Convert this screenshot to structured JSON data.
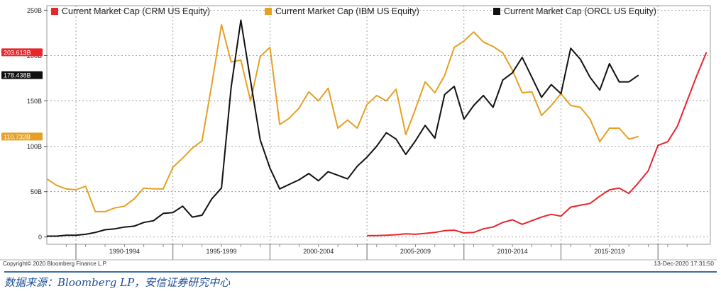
{
  "chart_data": {
    "type": "line",
    "legend": [
      "Current Market Cap (CRM US Equity)",
      "Current Market Cap (IBM US Equity)",
      "Current Market Cap (ORCL US Equity)"
    ],
    "legend_position": "top",
    "y_ticks": [
      "250B",
      "200B",
      "150B",
      "100B",
      "50B",
      "0"
    ],
    "y_tick_values": [
      250,
      200,
      150,
      100,
      50,
      0
    ],
    "ylim": [
      -8,
      255
    ],
    "xlim": [
      1988.0,
      2021.0
    ],
    "x_major_ticks": [
      1989.5,
      1994.5,
      1999.5,
      2004.5,
      2009.5,
      2014.5,
      2019.5
    ],
    "x_period_labels": [
      "1990-1994",
      "1995-1999",
      "2000-2004",
      "2005-2009",
      "2010-2014",
      "2015-2019"
    ],
    "x_period_centers": [
      1992.0,
      1997.0,
      2002.0,
      2007.0,
      2012.0,
      2017.0
    ],
    "grid": true,
    "last_value_tags": [
      {
        "series": 0,
        "text": "203.613B",
        "value": 203.613
      },
      {
        "series": 2,
        "text": "178.438B",
        "value": 178.438
      },
      {
        "series": 1,
        "text": "110.732B",
        "value": 110.732
      }
    ],
    "series": [
      {
        "name": "Current Market Cap (CRM US Equity)",
        "color": "#e8262c",
        "points": [
          [
            2004.5,
            1.5
          ],
          [
            2005.0,
            1.5
          ],
          [
            2005.5,
            2
          ],
          [
            2006.0,
            2.5
          ],
          [
            2006.5,
            3.5
          ],
          [
            2007.0,
            3
          ],
          [
            2007.5,
            4
          ],
          [
            2008.0,
            5
          ],
          [
            2008.5,
            7
          ],
          [
            2009.0,
            7.5
          ],
          [
            2009.5,
            4.5
          ],
          [
            2010.0,
            5
          ],
          [
            2010.5,
            9
          ],
          [
            2011.0,
            11
          ],
          [
            2011.5,
            16
          ],
          [
            2012.0,
            19
          ],
          [
            2012.5,
            14
          ],
          [
            2013.0,
            18
          ],
          [
            2013.5,
            22
          ],
          [
            2014.0,
            25
          ],
          [
            2014.5,
            23
          ],
          [
            2015.0,
            33
          ],
          [
            2015.5,
            35
          ],
          [
            2016.0,
            37
          ],
          [
            2016.5,
            45
          ],
          [
            2017.0,
            52
          ],
          [
            2017.5,
            54
          ],
          [
            2018.0,
            48
          ],
          [
            2018.5,
            60
          ],
          [
            2019.0,
            73
          ],
          [
            2019.5,
            101
          ],
          [
            2020.0,
            105
          ],
          [
            2020.5,
            122
          ],
          [
            2021.0,
            150
          ],
          [
            2021.5,
            178
          ],
          [
            2022.0,
            203.6
          ]
        ]
      },
      {
        "name": "Current Market Cap (IBM US Equity)",
        "color": "#e6a024",
        "points": [
          [
            1988.0,
            64
          ],
          [
            1988.5,
            57
          ],
          [
            1989.0,
            53
          ],
          [
            1989.5,
            52
          ],
          [
            1990.0,
            56
          ],
          [
            1990.5,
            28
          ],
          [
            1991.0,
            28
          ],
          [
            1991.5,
            32
          ],
          [
            1992.0,
            34
          ],
          [
            1992.5,
            42
          ],
          [
            1993.0,
            54
          ],
          [
            1993.5,
            53
          ],
          [
            1994.0,
            53
          ],
          [
            1994.5,
            77
          ],
          [
            1995.0,
            87
          ],
          [
            1995.5,
            98
          ],
          [
            1996.0,
            106
          ],
          [
            1996.5,
            168
          ],
          [
            1997.0,
            234
          ],
          [
            1997.5,
            193
          ],
          [
            1998.0,
            195
          ],
          [
            1998.5,
            150
          ],
          [
            1999.0,
            199
          ],
          [
            1999.5,
            209
          ],
          [
            2000.0,
            124
          ],
          [
            2000.5,
            131
          ],
          [
            2001.0,
            142
          ],
          [
            2001.5,
            160
          ],
          [
            2002.0,
            150
          ],
          [
            2002.5,
            164
          ],
          [
            2003.0,
            120
          ],
          [
            2003.5,
            129
          ],
          [
            2004.0,
            120
          ],
          [
            2004.5,
            146
          ],
          [
            2005.0,
            156
          ],
          [
            2005.5,
            150
          ],
          [
            2006.0,
            163
          ],
          [
            2006.5,
            113
          ],
          [
            2007.0,
            141
          ],
          [
            2007.5,
            171
          ],
          [
            2008.0,
            159
          ],
          [
            2008.5,
            178
          ],
          [
            2009.0,
            209
          ],
          [
            2009.5,
            216
          ],
          [
            2010.0,
            226
          ],
          [
            2010.5,
            215
          ],
          [
            2011.0,
            210
          ],
          [
            2011.5,
            203
          ],
          [
            2012.0,
            184
          ],
          [
            2012.5,
            159
          ],
          [
            2013.0,
            160
          ],
          [
            2013.5,
            134
          ],
          [
            2014.0,
            145
          ],
          [
            2014.5,
            158
          ],
          [
            2015.0,
            145
          ],
          [
            2015.5,
            143
          ],
          [
            2016.0,
            130
          ],
          [
            2016.5,
            105
          ],
          [
            2017.0,
            120
          ],
          [
            2017.5,
            120
          ],
          [
            2018.0,
            108
          ],
          [
            2018.5,
            110.7
          ]
        ]
      },
      {
        "name": "Current Market Cap (ORCL US Equity)",
        "color": "#111111",
        "points": [
          [
            1988.0,
            1
          ],
          [
            1988.5,
            1
          ],
          [
            1989.0,
            2
          ],
          [
            1989.5,
            2
          ],
          [
            1990.0,
            3
          ],
          [
            1990.5,
            5
          ],
          [
            1991.0,
            8
          ],
          [
            1991.5,
            9
          ],
          [
            1992.0,
            11
          ],
          [
            1992.5,
            12
          ],
          [
            1993.0,
            16
          ],
          [
            1993.5,
            18
          ],
          [
            1994.0,
            26
          ],
          [
            1994.5,
            27
          ],
          [
            1995.0,
            34
          ],
          [
            1995.5,
            22
          ],
          [
            1996.0,
            24
          ],
          [
            1996.5,
            42
          ],
          [
            1997.0,
            54
          ],
          [
            1997.5,
            165
          ],
          [
            1998.0,
            239
          ],
          [
            1998.5,
            172
          ],
          [
            1999.0,
            107
          ],
          [
            1999.5,
            76
          ],
          [
            2000.0,
            53
          ],
          [
            2000.5,
            58
          ],
          [
            2001.0,
            63
          ],
          [
            2001.5,
            70
          ],
          [
            2002.0,
            62
          ],
          [
            2002.5,
            72
          ],
          [
            2003.0,
            68
          ],
          [
            2003.5,
            64
          ],
          [
            2004.0,
            78
          ],
          [
            2004.5,
            88
          ],
          [
            2005.0,
            100
          ],
          [
            2005.5,
            115
          ],
          [
            2006.0,
            108
          ],
          [
            2006.5,
            91
          ],
          [
            2007.0,
            106
          ],
          [
            2007.5,
            123
          ],
          [
            2008.0,
            109
          ],
          [
            2008.5,
            157
          ],
          [
            2009.0,
            166
          ],
          [
            2009.5,
            130
          ],
          [
            2010.0,
            145
          ],
          [
            2010.5,
            156
          ],
          [
            2011.0,
            143
          ],
          [
            2011.5,
            173
          ],
          [
            2012.0,
            181
          ],
          [
            2012.5,
            198
          ],
          [
            2013.0,
            176
          ],
          [
            2013.5,
            154
          ],
          [
            2014.0,
            168
          ],
          [
            2014.5,
            158
          ],
          [
            2015.0,
            208
          ],
          [
            2015.5,
            196
          ],
          [
            2016.0,
            176
          ],
          [
            2016.5,
            162
          ],
          [
            2017.0,
            191
          ],
          [
            2017.5,
            171
          ],
          [
            2018.0,
            171
          ],
          [
            2018.5,
            178.4
          ]
        ]
      }
    ],
    "footer_left": "Copyright© 2020 Bloomberg Finance L.P.",
    "footer_right": "13-Dec-2020 17:31:50"
  },
  "source_note": "数据来源：Bloomberg LP，安信证券研究中心"
}
